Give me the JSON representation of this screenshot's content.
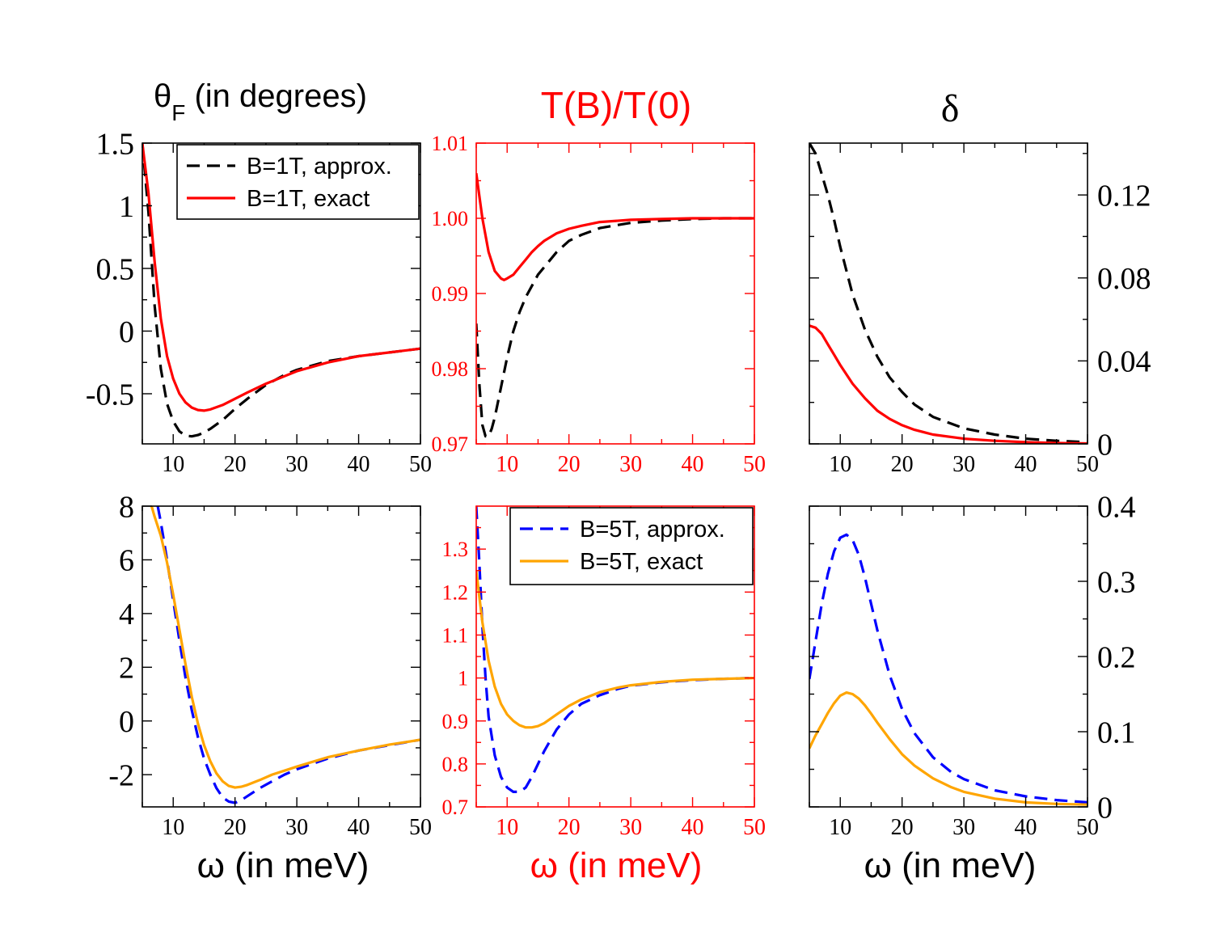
{
  "colors": {
    "black": "#000000",
    "red": "#ff0000",
    "blue": "#0000ff",
    "orange": "#ffa500"
  },
  "column_titles": {
    "theta_symbol": "θ",
    "theta_subscript": "F",
    "theta_rest": " (in degrees)",
    "transmission": "T(B)/T(0)",
    "delta": "δ"
  },
  "x_axis_labels": {
    "left": "ω (in meV)",
    "middle": "ω (in meV)",
    "right": "ω (in meV)"
  },
  "chart_data": [
    {
      "id": "p11",
      "type": "line",
      "title": "θF (in degrees)",
      "xlabel": "",
      "xlim": [
        5,
        50
      ],
      "ylim": [
        -0.9,
        1.5
      ],
      "xticks": [
        10,
        20,
        30,
        40,
        50
      ],
      "yticks": [
        -0.5,
        0,
        0.5,
        1,
        1.5
      ],
      "ytick_labels": [
        "-0.5",
        "0",
        "0.5",
        "1",
        "1.5"
      ],
      "axis_color": "black",
      "ytick_side": "left",
      "legend": {
        "position": "top-right"
      },
      "series": [
        {
          "name": "B=1T, approx.",
          "color": "black",
          "dash": true,
          "x": [
            5,
            6,
            7,
            8,
            9,
            10,
            11,
            12,
            13,
            14,
            15,
            16,
            18,
            20,
            22,
            25,
            28,
            30,
            35,
            40,
            45,
            50
          ],
          "y": [
            1.5,
            0.95,
            0.2,
            -0.3,
            -0.58,
            -0.72,
            -0.8,
            -0.835,
            -0.84,
            -0.83,
            -0.81,
            -0.78,
            -0.71,
            -0.62,
            -0.54,
            -0.43,
            -0.35,
            -0.31,
            -0.24,
            -0.2,
            -0.17,
            -0.14
          ]
        },
        {
          "name": "B=1T, exact",
          "color": "red",
          "dash": false,
          "x": [
            5,
            6,
            7,
            8,
            9,
            10,
            11,
            12,
            13,
            14,
            15,
            16,
            18,
            20,
            22,
            25,
            28,
            30,
            35,
            40,
            45,
            50
          ],
          "y": [
            1.5,
            1.1,
            0.55,
            0.1,
            -0.2,
            -0.38,
            -0.5,
            -0.57,
            -0.61,
            -0.63,
            -0.635,
            -0.625,
            -0.59,
            -0.54,
            -0.49,
            -0.42,
            -0.36,
            -0.32,
            -0.25,
            -0.2,
            -0.17,
            -0.14
          ]
        }
      ]
    },
    {
      "id": "p12",
      "type": "line",
      "title": "T(B)/T(0)",
      "xlabel": "",
      "xlim": [
        5,
        50
      ],
      "ylim": [
        0.97,
        1.01
      ],
      "xticks": [
        10,
        20,
        30,
        40,
        50
      ],
      "yticks": [
        0.97,
        0.98,
        0.99,
        1.0,
        1.01
      ],
      "ytick_labels": [
        "0.97",
        "0.98",
        "0.99",
        "1.00",
        "1.01"
      ],
      "axis_color": "red",
      "ytick_side": "left",
      "series": [
        {
          "name": "B=1T, approx.",
          "color": "black",
          "dash": true,
          "x": [
            5,
            5.5,
            6,
            6.5,
            7,
            7.5,
            8,
            9,
            10,
            11,
            12,
            13,
            14,
            15,
            16,
            18,
            20,
            22,
            25,
            30,
            35,
            40,
            45,
            50
          ],
          "y": [
            0.986,
            0.978,
            0.9725,
            0.971,
            0.971,
            0.972,
            0.9735,
            0.9775,
            0.9815,
            0.985,
            0.9875,
            0.9895,
            0.991,
            0.9925,
            0.9935,
            0.9955,
            0.997,
            0.9978,
            0.9987,
            0.9994,
            0.9997,
            0.9999,
            1.0,
            1.0
          ]
        },
        {
          "name": "B=1T, exact",
          "color": "red",
          "dash": false,
          "x": [
            5,
            6,
            7,
            8,
            9,
            9.5,
            10,
            11,
            12,
            13,
            14,
            15,
            16,
            18,
            20,
            22,
            25,
            30,
            35,
            40,
            45,
            50
          ],
          "y": [
            1.006,
            1.0,
            0.9955,
            0.993,
            0.992,
            0.9918,
            0.992,
            0.9925,
            0.9935,
            0.9945,
            0.9955,
            0.9963,
            0.997,
            0.998,
            0.9986,
            0.999,
            0.9995,
            0.9998,
            0.9999,
            1.0,
            1.0,
            1.0
          ]
        }
      ]
    },
    {
      "id": "p13",
      "type": "line",
      "title": "δ",
      "xlabel": "",
      "xlim": [
        5,
        50
      ],
      "ylim": [
        0,
        0.145
      ],
      "xticks": [
        10,
        20,
        30,
        40,
        50
      ],
      "yticks": [
        0,
        0.04,
        0.08,
        0.12
      ],
      "ytick_labels": [
        "0",
        "0.04",
        "0.08",
        "0.12"
      ],
      "axis_color": "black",
      "ytick_side": "right",
      "series": [
        {
          "name": "B=1T, approx.",
          "color": "black",
          "dash": true,
          "x": [
            5,
            6,
            7,
            8,
            9,
            10,
            12,
            14,
            16,
            18,
            20,
            22,
            25,
            30,
            35,
            40,
            45,
            50
          ],
          "y": [
            0.145,
            0.14,
            0.13,
            0.12,
            0.108,
            0.095,
            0.072,
            0.055,
            0.042,
            0.032,
            0.025,
            0.019,
            0.013,
            0.0075,
            0.0045,
            0.0025,
            0.0015,
            0.0008
          ]
        },
        {
          "name": "B=1T, exact",
          "color": "red",
          "dash": false,
          "x": [
            5,
            6,
            7,
            8,
            9,
            10,
            12,
            14,
            16,
            18,
            20,
            22,
            25,
            30,
            35,
            40,
            45,
            50
          ],
          "y": [
            0.057,
            0.056,
            0.053,
            0.048,
            0.043,
            0.038,
            0.029,
            0.022,
            0.016,
            0.012,
            0.009,
            0.0068,
            0.0045,
            0.0025,
            0.0015,
            0.0008,
            0.0004,
            0.0002
          ]
        }
      ]
    },
    {
      "id": "p21",
      "type": "line",
      "title": "",
      "xlabel": "ω (in meV)",
      "xlim": [
        5,
        50
      ],
      "ylim": [
        -3.2,
        8
      ],
      "xticks": [
        10,
        20,
        30,
        40,
        50
      ],
      "yticks": [
        -2,
        0,
        2,
        4,
        6,
        8
      ],
      "ytick_labels": [
        "-2",
        "0",
        "2",
        "4",
        "6",
        "8"
      ],
      "axis_color": "black",
      "ytick_side": "left",
      "series": [
        {
          "name": "B=5T, approx.",
          "color": "blue",
          "dash": true,
          "x": [
            7.5,
            8,
            9,
            10,
            11,
            12,
            13,
            14,
            15,
            16,
            17,
            18,
            19,
            20,
            21,
            22,
            24,
            26,
            28,
            30,
            35,
            40,
            45,
            50
          ],
          "y": [
            8,
            7.4,
            6.0,
            4.5,
            3.0,
            1.6,
            0.4,
            -0.6,
            -1.4,
            -2.0,
            -2.5,
            -2.85,
            -3.0,
            -3.05,
            -2.95,
            -2.8,
            -2.5,
            -2.25,
            -2.0,
            -1.8,
            -1.4,
            -1.1,
            -0.9,
            -0.7
          ]
        },
        {
          "name": "B=5T, exact",
          "color": "orange",
          "dash": false,
          "x": [
            6.5,
            7,
            8,
            9,
            10,
            11,
            12,
            13,
            14,
            15,
            16,
            17,
            18,
            19,
            20,
            21,
            22,
            24,
            26,
            28,
            30,
            35,
            40,
            45,
            50
          ],
          "y": [
            8,
            7.6,
            6.9,
            5.9,
            4.7,
            3.4,
            2.1,
            0.9,
            -0.1,
            -0.9,
            -1.5,
            -1.95,
            -2.25,
            -2.42,
            -2.48,
            -2.45,
            -2.38,
            -2.2,
            -2.0,
            -1.85,
            -1.7,
            -1.35,
            -1.1,
            -0.88,
            -0.7
          ]
        }
      ]
    },
    {
      "id": "p22",
      "type": "line",
      "title": "",
      "xlabel": "ω (in meV)",
      "xlim": [
        5,
        50
      ],
      "ylim": [
        0.7,
        1.4
      ],
      "xticks": [
        10,
        20,
        30,
        40,
        50
      ],
      "yticks": [
        0.7,
        0.8,
        0.9,
        1.0,
        1.1,
        1.2,
        1.3
      ],
      "ytick_labels": [
        "0.7",
        "0.8",
        "0.9",
        "1",
        "1.1",
        "1.2",
        "1.3"
      ],
      "axis_color": "red",
      "ytick_side": "left",
      "legend": {
        "position": "top-right"
      },
      "series": [
        {
          "name": "B=5T, approx.",
          "color": "blue",
          "dash": true,
          "x": [
            5,
            5.5,
            6,
            6.5,
            7,
            8,
            9,
            10,
            11,
            12,
            13,
            14,
            15,
            16,
            18,
            20,
            22,
            25,
            28,
            30,
            35,
            40,
            45,
            50
          ],
          "y": [
            1.4,
            1.27,
            1.12,
            1.0,
            0.91,
            0.82,
            0.77,
            0.745,
            0.735,
            0.735,
            0.745,
            0.77,
            0.8,
            0.83,
            0.88,
            0.915,
            0.94,
            0.96,
            0.975,
            0.982,
            0.99,
            0.995,
            0.998,
            1.0
          ]
        },
        {
          "name": "B=5T, exact",
          "color": "orange",
          "dash": false,
          "x": [
            5,
            6,
            7,
            8,
            9,
            10,
            11,
            12,
            13,
            14,
            15,
            16,
            18,
            20,
            22,
            25,
            28,
            30,
            35,
            40,
            45,
            50
          ],
          "y": [
            1.25,
            1.13,
            1.04,
            0.98,
            0.94,
            0.915,
            0.9,
            0.89,
            0.885,
            0.885,
            0.888,
            0.895,
            0.915,
            0.935,
            0.95,
            0.967,
            0.978,
            0.983,
            0.991,
            0.996,
            0.998,
            1.0
          ]
        }
      ]
    },
    {
      "id": "p23",
      "type": "line",
      "title": "",
      "xlabel": "ω (in meV)",
      "xlim": [
        5,
        50
      ],
      "ylim": [
        0,
        0.4
      ],
      "xticks": [
        10,
        20,
        30,
        40,
        50
      ],
      "yticks": [
        0,
        0.1,
        0.2,
        0.3,
        0.4
      ],
      "ytick_labels": [
        "0",
        "0.1",
        "0.2",
        "0.3",
        "0.4"
      ],
      "axis_color": "black",
      "ytick_side": "right",
      "series": [
        {
          "name": "B=5T, approx.",
          "color": "blue",
          "dash": true,
          "x": [
            5,
            6,
            7,
            8,
            9,
            10,
            11,
            12,
            13,
            14,
            15,
            16,
            18,
            20,
            22,
            25,
            28,
            30,
            35,
            40,
            45,
            50
          ],
          "y": [
            0.17,
            0.22,
            0.27,
            0.31,
            0.34,
            0.358,
            0.362,
            0.355,
            0.335,
            0.305,
            0.27,
            0.235,
            0.175,
            0.13,
            0.098,
            0.066,
            0.046,
            0.037,
            0.022,
            0.014,
            0.009,
            0.006
          ]
        },
        {
          "name": "B=5T, exact",
          "color": "orange",
          "dash": false,
          "x": [
            5,
            6,
            7,
            8,
            9,
            10,
            11,
            12,
            13,
            14,
            15,
            16,
            18,
            20,
            22,
            25,
            28,
            30,
            35,
            40,
            45,
            50
          ],
          "y": [
            0.078,
            0.095,
            0.11,
            0.125,
            0.138,
            0.148,
            0.152,
            0.15,
            0.144,
            0.135,
            0.124,
            0.112,
            0.09,
            0.07,
            0.055,
            0.038,
            0.026,
            0.02,
            0.011,
            0.006,
            0.004,
            0.003
          ]
        }
      ]
    }
  ]
}
